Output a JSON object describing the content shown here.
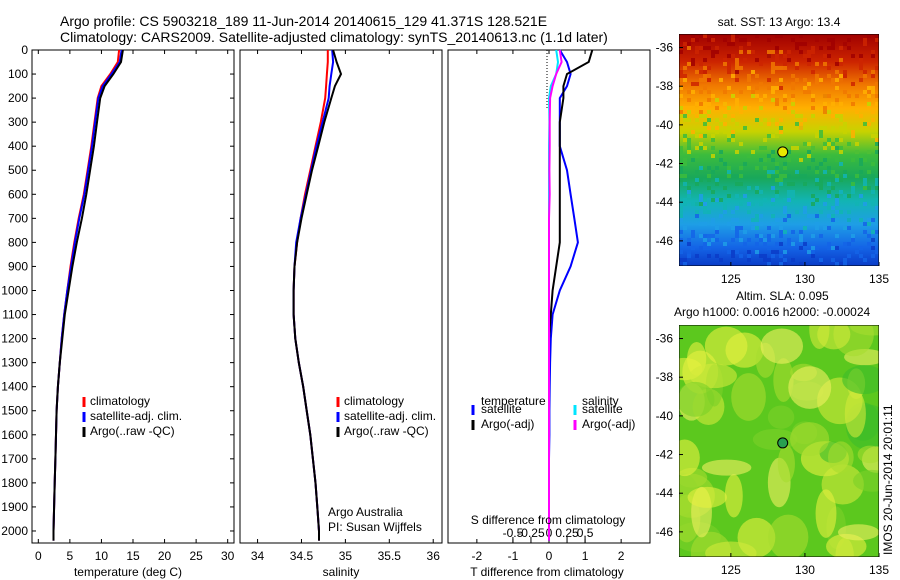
{
  "header": {
    "line1": "Argo profile: CS 5903218_189 11-Jun-2014 20140615_129 41.371S 128.521E",
    "line2": "Climatology: CARS2009. Satellite-adjusted climatology: synTS_20140613.nc (1.1d later)"
  },
  "colors": {
    "clim": "#ff0000",
    "sat": "#0000ff",
    "argo": "#000000",
    "sat_s": "#00e5ff",
    "argo_s": "#ff00ff"
  },
  "legend_profiles": [
    "climatology",
    "satellite-adj. clim.",
    "Argo(..raw -QC)"
  ],
  "legend_diff": {
    "t_title": "temperature",
    "s_title": "salinity",
    "sat": "satellite",
    "argo": "Argo(-adj)"
  },
  "credits": {
    "line1": "Argo Australia",
    "line2": "PI: Susan Wijffels"
  },
  "diff_top_label": "S difference from climatology",
  "sst_title": "sat. SST: 13 Argo: 13.4",
  "sla_title1": "Altim. SLA: 0.095",
  "sla_title2": "Argo h1000: 0.0016 h2000: -0.00024",
  "watermark": "IMOS 20-Jun-2014 20:01:11",
  "chart_data": [
    {
      "type": "line",
      "xlabel": "temperature (deg C)",
      "ylabel": "",
      "ylim": [
        2050,
        0
      ],
      "xlim": [
        -1,
        31
      ],
      "xticks": [
        "0",
        "5",
        "10",
        "15",
        "20",
        "25",
        "30"
      ],
      "yticks": [
        "0",
        "100",
        "200",
        "300",
        "400",
        "500",
        "600",
        "700",
        "800",
        "900",
        "1000",
        "1100",
        "1200",
        "1300",
        "1400",
        "1500",
        "1600",
        "1700",
        "1800",
        "1900",
        "2000"
      ],
      "depth": [
        0,
        50,
        100,
        150,
        200,
        300,
        400,
        500,
        600,
        700,
        800,
        900,
        1000,
        1100,
        1200,
        1300,
        1400,
        1500,
        1600,
        1700,
        1800,
        1900,
        2000,
        2040
      ],
      "series": [
        {
          "name": "climatology",
          "values": [
            12.8,
            12.6,
            11.4,
            10.0,
            9.4,
            8.9,
            8.4,
            7.8,
            7.2,
            6.4,
            5.7,
            5.1,
            4.6,
            4.1,
            3.7,
            3.4,
            3.1,
            2.9,
            2.8,
            2.7,
            2.6,
            2.5,
            2.4,
            2.4
          ]
        },
        {
          "name": "satellite-adj. clim.",
          "values": [
            13.2,
            12.9,
            11.6,
            10.2,
            9.5,
            9.0,
            8.5,
            7.9,
            7.3,
            6.5,
            5.8,
            5.2,
            4.6,
            4.1,
            3.7,
            3.4,
            3.1,
            2.9,
            2.8,
            2.7,
            2.6,
            2.5,
            2.4,
            2.4
          ]
        },
        {
          "name": "Argo(..raw -QC)",
          "values": [
            13.4,
            13.1,
            11.9,
            10.5,
            9.8,
            9.3,
            8.8,
            8.2,
            7.6,
            6.9,
            6.1,
            5.4,
            4.8,
            4.2,
            3.8,
            3.4,
            3.1,
            2.9,
            2.8,
            2.7,
            2.6,
            2.5,
            2.4,
            2.4
          ]
        }
      ]
    },
    {
      "type": "line",
      "xlabel": "salinity",
      "ylabel": "",
      "ylim": [
        2050,
        0
      ],
      "xlim": [
        33.8,
        36.1
      ],
      "xticks": [
        "34",
        "34.5",
        "35",
        "35.5",
        "36"
      ],
      "depth": [
        0,
        50,
        100,
        150,
        200,
        300,
        400,
        500,
        600,
        700,
        800,
        900,
        1000,
        1100,
        1200,
        1300,
        1400,
        1500,
        1600,
        1700,
        1800,
        1900,
        2000,
        2040
      ],
      "series": [
        {
          "name": "climatology",
          "values": [
            34.8,
            34.8,
            34.79,
            34.78,
            34.77,
            34.72,
            34.66,
            34.6,
            34.54,
            34.49,
            34.45,
            34.42,
            34.41,
            34.41,
            34.43,
            34.47,
            34.52,
            34.56,
            34.6,
            34.63,
            34.66,
            34.68,
            34.7,
            34.7
          ]
        },
        {
          "name": "satellite-adj. clim.",
          "values": [
            34.85,
            34.86,
            34.84,
            34.82,
            34.81,
            34.74,
            34.67,
            34.61,
            34.55,
            34.49,
            34.44,
            34.42,
            34.41,
            34.41,
            34.43,
            34.47,
            34.52,
            34.56,
            34.6,
            34.63,
            34.66,
            34.68,
            34.7,
            34.7
          ]
        },
        {
          "name": "Argo(..raw -QC)",
          "values": [
            34.86,
            34.9,
            34.95,
            34.88,
            34.84,
            34.76,
            34.69,
            34.62,
            34.56,
            34.5,
            34.45,
            34.42,
            34.41,
            34.41,
            34.43,
            34.47,
            34.52,
            34.56,
            34.6,
            34.63,
            34.66,
            34.68,
            34.7,
            34.7
          ]
        }
      ]
    },
    {
      "type": "line",
      "xlabel": "T difference from climatology",
      "ylabel": "",
      "ylim": [
        2050,
        0
      ],
      "xlim": [
        -2.8,
        2.8
      ],
      "xticks": [
        "-2",
        "-1",
        "0",
        "1",
        "2"
      ],
      "top_xticks": [
        "-0.5",
        "-0.25",
        "0",
        "0.25",
        "0.5"
      ],
      "depth": [
        0,
        50,
        100,
        150,
        200,
        300,
        400,
        500,
        600,
        700,
        800,
        900,
        1000,
        1100,
        1200,
        1300,
        1400,
        1500,
        1600,
        1700,
        1800,
        1900,
        2000,
        2040
      ],
      "series": [
        {
          "name": "temperature satellite",
          "values": [
            0.3,
            0.5,
            0.6,
            0.5,
            0.3,
            0.3,
            0.3,
            0.5,
            0.6,
            0.7,
            0.8,
            0.6,
            0.3,
            0.1,
            0.05,
            0.03,
            0.02,
            0.01,
            0.01,
            0.0,
            0.0,
            0.0,
            0.0,
            0.0
          ]
        },
        {
          "name": "temperature Argo(-adj)",
          "values": [
            1.2,
            1.1,
            0.5,
            0.4,
            0.4,
            0.3,
            0.3,
            0.3,
            0.3,
            0.3,
            0.3,
            0.2,
            0.1,
            0.05,
            0.0,
            0.0,
            0.0,
            0.0,
            0.0,
            0.0,
            0.0,
            0.0,
            0.0,
            0.0
          ]
        },
        {
          "name": "salinity satellite",
          "values": [
            0.2,
            0.25,
            0.2,
            0.05,
            0.0,
            0.01,
            0.0,
            0.0,
            0.0,
            0.0,
            0.0,
            0.0,
            0.0,
            0.0,
            0.0,
            0.0,
            0.0,
            0.0,
            0.0,
            0.0,
            0.0,
            0.0,
            0.0,
            0.0
          ]
        },
        {
          "name": "salinity Argo(-adj)",
          "values": [
            0.3,
            0.35,
            0.2,
            0.1,
            0.03,
            0.02,
            0.02,
            0.01,
            0.02,
            0.0,
            0.0,
            0.0,
            0.0,
            0.0,
            0.0,
            0.0,
            0.0,
            0.0,
            0.0,
            0.0,
            0.0,
            0.0,
            0.0,
            0.0
          ]
        }
      ]
    },
    {
      "type": "heatmap",
      "title": "sat. SST: 13 Argo: 13.4",
      "xlim": [
        121.5,
        135
      ],
      "ylim": [
        -47.3,
        -35.3
      ],
      "xticks": [
        "125",
        "130",
        "135"
      ],
      "yticks": [
        "-36",
        "-38",
        "-40",
        "-42",
        "-44",
        "-46"
      ],
      "marker": {
        "lon": 128.5,
        "lat": -41.4
      }
    },
    {
      "type": "heatmap",
      "title": "Altim. SLA: 0.095",
      "xlim": [
        121.5,
        135
      ],
      "ylim": [
        -47.3,
        -35.3
      ],
      "xticks": [
        "125",
        "130",
        "135"
      ],
      "yticks": [
        "-36",
        "-38",
        "-40",
        "-42",
        "-44",
        "-46"
      ],
      "marker": {
        "lon": 128.5,
        "lat": -41.4
      }
    }
  ]
}
